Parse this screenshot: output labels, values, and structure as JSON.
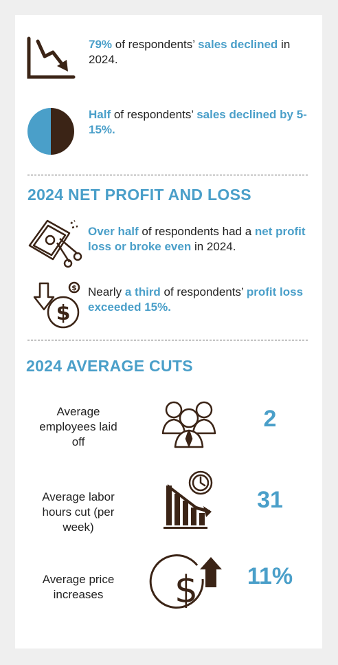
{
  "colors": {
    "accent": "#4a9fc9",
    "dark": "#3b2416",
    "background": "#efefef",
    "card": "#ffffff"
  },
  "sales": [
    {
      "icon": "declining-chart-icon",
      "hl1": "79%",
      "t1": " of respondents’ ",
      "hl2": "sales declined",
      "t2": " in 2024."
    },
    {
      "icon": "half-pie-icon",
      "hl1": "Half",
      "t1": " of respondents’ ",
      "hl2": "sales declined by 5-15%.",
      "t2": ""
    }
  ],
  "profit_loss": {
    "title": "2024 NET PROFIT AND LOSS",
    "items": [
      {
        "icon": "cut-money-icon",
        "hl1": "Over half",
        "t1": " of respondents had a ",
        "hl2": "net profit loss or broke even",
        "t2": " in 2024."
      },
      {
        "icon": "dollar-down-arrow-icon",
        "t0": "Nearly ",
        "hl1": "a third",
        "t1": " of respondents’ ",
        "hl2": "profit loss exceeded 15%.",
        "t2": ""
      }
    ]
  },
  "cuts": {
    "title": "2024 AVERAGE CUTS",
    "items": [
      {
        "label": "Average employees laid off",
        "icon": "employees-group-icon",
        "value": "2"
      },
      {
        "label": "Average labor hours cut (per week)",
        "icon": "clock-declining-bars-icon",
        "value": "31"
      },
      {
        "label": "Average price increases",
        "icon": "dollar-up-arrow-icon",
        "value": "11%"
      }
    ]
  }
}
